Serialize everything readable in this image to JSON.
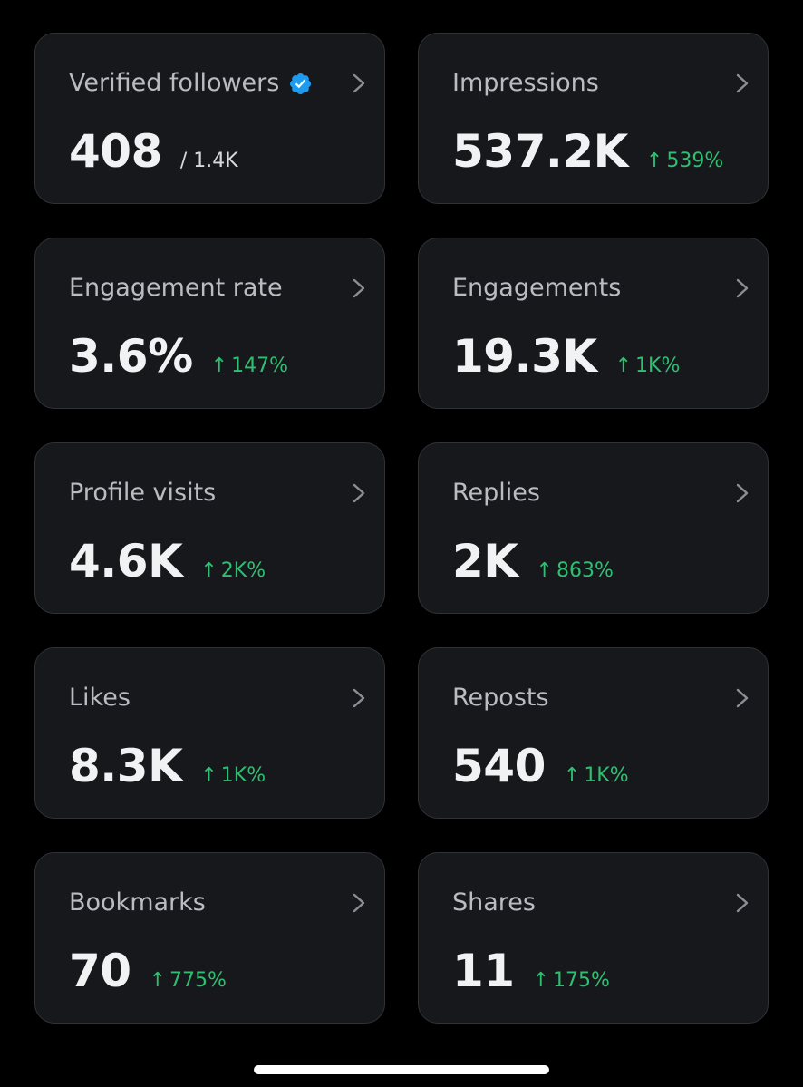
{
  "colors": {
    "background": "#000000",
    "card": "#17181c",
    "card_border": "#2f3336",
    "title_text": "#b9bcc1",
    "value_text": "#f1f2f3",
    "delta_positive": "#2fbf71",
    "verified_badge": "#1d9bf0"
  },
  "cards": [
    {
      "title": "Verified followers",
      "value": "408",
      "sub": "/ 1.4K",
      "delta": "",
      "badge_icon": "verified-badge-icon"
    },
    {
      "title": "Impressions",
      "value": "537.2K",
      "sub": "",
      "delta": "539%"
    },
    {
      "title": "Engagement rate",
      "value": "3.6%",
      "sub": "",
      "delta": "147%"
    },
    {
      "title": "Engagements",
      "value": "19.3K",
      "sub": "",
      "delta": "1K%"
    },
    {
      "title": "Profile visits",
      "value": "4.6K",
      "sub": "",
      "delta": "2K%"
    },
    {
      "title": "Replies",
      "value": "2K",
      "sub": "",
      "delta": "863%"
    },
    {
      "title": "Likes",
      "value": "8.3K",
      "sub": "",
      "delta": "1K%"
    },
    {
      "title": "Reposts",
      "value": "540",
      "sub": "",
      "delta": "1K%"
    },
    {
      "title": "Bookmarks",
      "value": "70",
      "sub": "",
      "delta": "775%"
    },
    {
      "title": "Shares",
      "value": "11",
      "sub": "",
      "delta": "175%"
    }
  ],
  "icons": {
    "delta_arrow": "↑",
    "chevron": "chevron-right-icon"
  }
}
